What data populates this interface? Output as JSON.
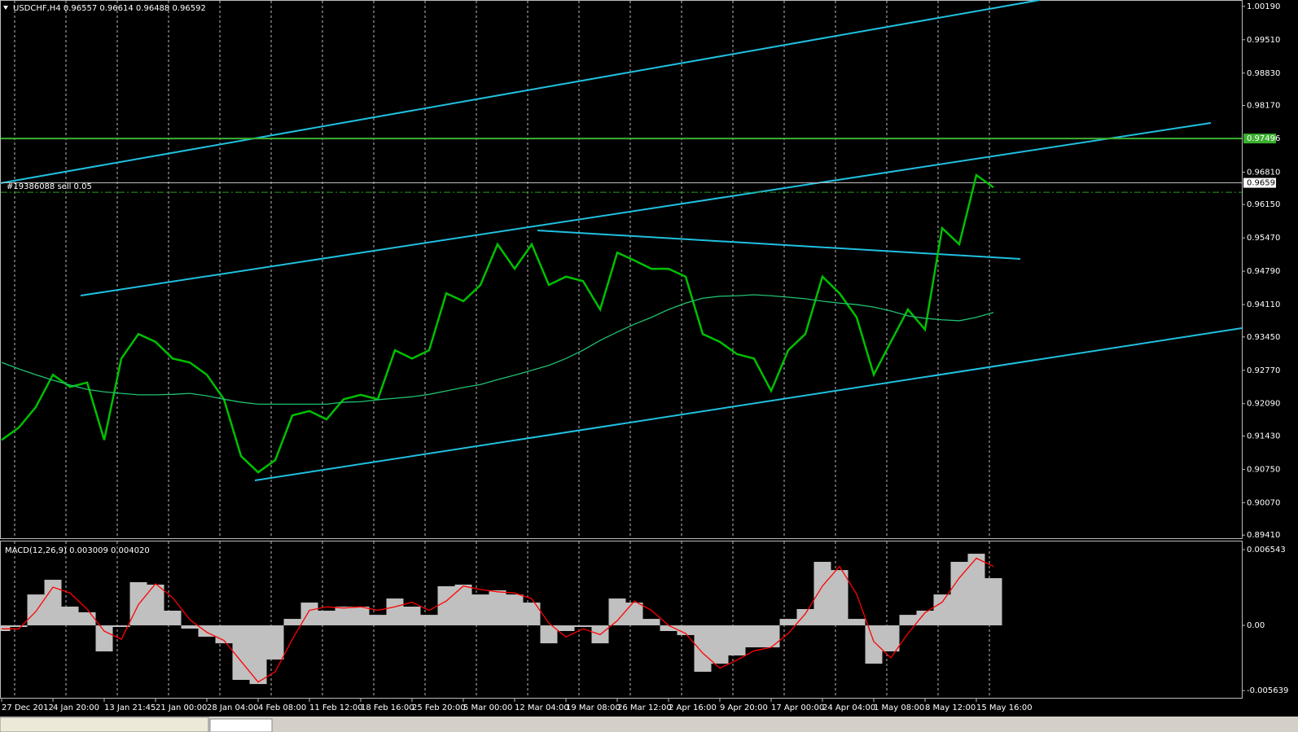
{
  "chart_data": [
    {
      "type": "line",
      "title": "USDCHF,H4  0.96557 0.96614 0.96488 0.96592",
      "categories": [
        "27 Dec 2012",
        null,
        null,
        "4 Jan 20:00",
        null,
        null,
        "13 Jan 21:45",
        null,
        null,
        "21 Jan 00:00",
        null,
        null,
        "28 Jan 04:00",
        null,
        null,
        "4 Feb 08:00",
        null,
        null,
        "11 Feb 12:00",
        null,
        null,
        "18 Feb 16:00",
        null,
        null,
        "25 Feb 20:00",
        null,
        null,
        "5 Mar 00:00",
        null,
        null,
        "12 Mar 04:00",
        null,
        null,
        "19 Mar 08:00",
        null,
        null,
        "26 Mar 12:00",
        null,
        null,
        "2 Apr 16:00",
        null,
        null,
        "9 Apr 20:00",
        null,
        null,
        "17 Apr 00:00",
        null,
        null,
        "24 Apr 04:00",
        null,
        null,
        "1 May 08:00",
        null,
        null,
        "8 May 12:00",
        null,
        null,
        "15 May 16:00",
        null
      ],
      "series": [
        {
          "color": "#00c000",
          "values": [
            0.9135,
            0.916,
            0.9202,
            0.9268,
            0.9243,
            0.9252,
            0.9135,
            0.9301,
            0.9351,
            0.9335,
            0.9301,
            0.9293,
            0.9268,
            0.9218,
            0.9102,
            0.9069,
            0.9094,
            0.9185,
            0.9194,
            0.9177,
            0.9218,
            0.9227,
            0.9218,
            0.9318,
            0.9301,
            0.9318,
            0.9434,
            0.9418,
            0.9451,
            0.9534,
            0.9484,
            0.9534,
            0.9451,
            0.9468,
            0.9459,
            0.9401,
            0.9517,
            0.9501,
            0.9484,
            0.9484,
            0.9468,
            0.9351,
            0.9335,
            0.931,
            0.9301,
            0.9235,
            0.9318,
            0.9351,
            0.9468,
            0.9434,
            0.9385,
            0.9268,
            0.9335,
            0.9401,
            0.936,
            0.9567,
            0.9534,
            0.9675,
            0.965
          ]
        },
        {
          "color": "#20c070",
          "values": [
            0.9293,
            0.928,
            0.9268,
            0.9257,
            0.9247,
            0.9238,
            0.9233,
            0.923,
            0.9227,
            0.9227,
            0.9228,
            0.923,
            0.9225,
            0.9218,
            0.9212,
            0.9208,
            0.9208,
            0.9208,
            0.9208,
            0.9208,
            0.9212,
            0.9213,
            0.9217,
            0.922,
            0.9223,
            0.9228,
            0.9235,
            0.9242,
            0.9248,
            0.9258,
            0.9267,
            0.9277,
            0.9287,
            0.9301,
            0.9318,
            0.9338,
            0.9355,
            0.9371,
            0.9385,
            0.9401,
            0.9414,
            0.9424,
            0.9428,
            0.9429,
            0.9431,
            0.9429,
            0.9426,
            0.9423,
            0.9418,
            0.9414,
            0.9411,
            0.9406,
            0.9398,
            0.9388,
            0.9383,
            0.938,
            0.9378,
            0.9385,
            0.9395
          ]
        }
      ],
      "ylim": [
        0.8933,
        1.0032
      ],
      "yticks": [
        {
          "value": 1.0019,
          "label": "1.00190"
        },
        {
          "value": 0.9951,
          "label": "0.99510"
        },
        {
          "value": 0.9883,
          "label": "0.98830"
        },
        {
          "value": 0.9817,
          "label": "0.98170"
        },
        {
          "value": 0.9681,
          "label": "0.96810"
        },
        {
          "value": 0.9615,
          "label": "0.96150"
        },
        {
          "value": 0.9547,
          "label": "0.95470"
        },
        {
          "value": 0.9479,
          "label": "0.94790"
        },
        {
          "value": 0.9411,
          "label": "0.94110"
        },
        {
          "value": 0.9345,
          "label": "0.93450"
        },
        {
          "value": 0.9277,
          "label": "0.92770"
        },
        {
          "value": 0.9209,
          "label": "0.92090"
        },
        {
          "value": 0.9143,
          "label": "0.91430"
        },
        {
          "value": 0.9075,
          "label": "0.90750"
        },
        {
          "value": 0.9007,
          "label": "0.90070"
        },
        {
          "value": 0.8941,
          "label": "0.89410"
        }
      ],
      "hlines": [
        0.97496,
        0.96592
      ],
      "hline_colors": [
        "#3cb030",
        "#c0c0c0"
      ],
      "order": {
        "label": "#19386088 sell 0.05",
        "value": 0.964
      },
      "grid": true
    },
    {
      "type": "macd",
      "title": "MACD(12,26,9) 0.003009 0.004020",
      "series": [
        {
          "color": "#c0c0c0",
          "values": [
            -0.00049,
            -0.00014,
            0.00267,
            0.00394,
            0.00162,
            0.00113,
            -0.00225,
            -0.00014,
            0.00373,
            0.00352,
            0.00127,
            -0.00028,
            -0.00098,
            -0.00155,
            -0.00471,
            -0.00507,
            -0.00295,
            0.00056,
            0.00197,
            0.00127,
            0.00162,
            0.00162,
            0.00091,
            0.00232,
            0.00162,
            0.00091,
            0.00338,
            0.00352,
            0.00267,
            0.00303,
            0.00267,
            0.00197,
            -0.00155,
            -0.00049,
            -0.00014,
            -0.00155,
            0.00232,
            0.00197,
            0.00056,
            -0.00049,
            -0.00084,
            -0.00401,
            -0.00331,
            -0.0026,
            -0.0019,
            -0.0019,
            0.00056,
            0.00141,
            0.00549,
            0.00478,
            0.00056,
            -0.00331,
            -0.00225,
            0.00091,
            0.00127,
            0.00267,
            0.00549,
            0.00619,
            0.00408
          ]
        },
        {
          "color": "#ff0000",
          "values": [
            -0.0003,
            -0.0003,
            0.0012,
            0.0033,
            0.0028,
            0.0014,
            -0.0005,
            -0.0012,
            0.0018,
            0.0036,
            0.0024,
            0.0005,
            -0.0006,
            -0.0013,
            -0.0031,
            -0.0049,
            -0.004,
            -0.0012,
            0.0013,
            0.0016,
            0.0015,
            0.0016,
            0.0013,
            0.0016,
            0.002,
            0.0013,
            0.0021,
            0.0034,
            0.0031,
            0.0029,
            0.0028,
            0.0023,
            0.0002,
            -0.001,
            -0.0003,
            -0.0008,
            0.0004,
            0.0021,
            0.0013,
            0.0,
            -0.0007,
            -0.0024,
            -0.0037,
            -0.003,
            -0.0022,
            -0.0019,
            -0.0007,
            0.001,
            0.0034,
            0.0051,
            0.0027,
            -0.0014,
            -0.0028,
            -0.0007,
            0.0011,
            0.002,
            0.0041,
            0.0058,
            0.0051
          ]
        }
      ],
      "ylim": [
        -0.00633,
        0.00732
      ],
      "yticks": [
        0.006543,
        {
          "value": 0,
          "label": "0.00"
        },
        -0.005639
      ]
    }
  ]
}
